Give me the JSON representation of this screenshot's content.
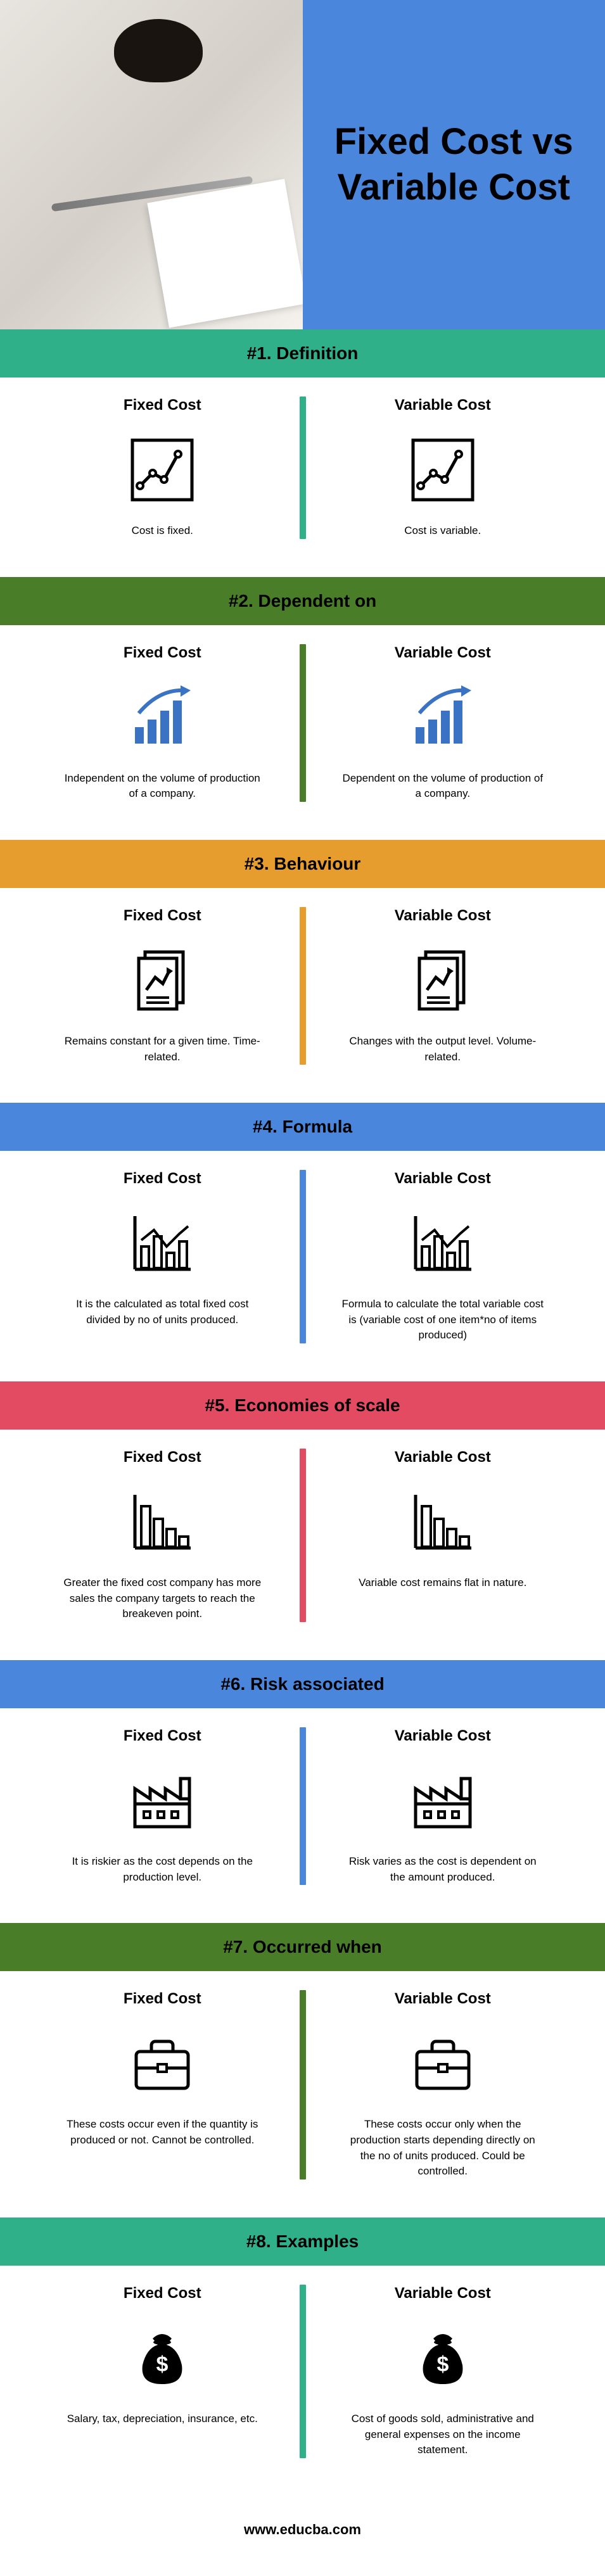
{
  "header": {
    "title": "Fixed Cost vs Variable Cost",
    "title_bg": "#4b86dd"
  },
  "labels": {
    "fixed": "Fixed Cost",
    "variable": "Variable Cost"
  },
  "sections": [
    {
      "banner": "#1. Definition",
      "banner_bg": "#2fb089",
      "divider_bg": "#2fb089",
      "icon": "line-chart",
      "fixed_text": "Cost is fixed.",
      "variable_text": "Cost is variable."
    },
    {
      "banner": "#2. Dependent on",
      "banner_bg": "#4a7d28",
      "divider_bg": "#4a7d28",
      "icon": "bar-arrow",
      "fixed_text": "Independent on the volume of production of a company.",
      "variable_text": "Dependent on the volume of production of a company."
    },
    {
      "banner": "#3. Behaviour",
      "banner_bg": "#e79d2d",
      "divider_bg": "#e79d2d",
      "icon": "document-chart",
      "fixed_text": "Remains constant for a given time. Time-related.",
      "variable_text": "Changes with the output level. Volume-related."
    },
    {
      "banner": "#4. Formula",
      "banner_bg": "#4b86dd",
      "divider_bg": "#4b86dd",
      "icon": "mixed-chart",
      "fixed_text": "It is the calculated as total fixed cost divided by no of units produced.",
      "variable_text": "Formula to calculate the total variable cost is (variable cost of one item*no of items produced)"
    },
    {
      "banner": "#5. Economies of scale",
      "banner_bg": "#e34b63",
      "divider_bg": "#e34b63",
      "icon": "descending-bars",
      "fixed_text": "Greater the fixed cost company has more sales the company targets to reach the breakeven point.",
      "variable_text": "Variable cost remains flat in nature."
    },
    {
      "banner": "#6. Risk associated",
      "banner_bg": "#4b86dd",
      "divider_bg": "#4b86dd",
      "icon": "factory",
      "fixed_text": "It is riskier as the cost depends on the production level.",
      "variable_text": "Risk varies as the cost is dependent on the amount produced."
    },
    {
      "banner": "#7. Occurred when",
      "banner_bg": "#4a7d28",
      "divider_bg": "#4a7d28",
      "icon": "briefcase",
      "fixed_text": "These costs occur even if the quantity is produced or not. Cannot be controlled.",
      "variable_text": "These costs occur only when the production starts depending directly on the no of units produced. Could be controlled."
    },
    {
      "banner": "#8. Examples",
      "banner_bg": "#2fb089",
      "divider_bg": "#2fb089",
      "icon": "money-bag",
      "fixed_text": "Salary, tax, depreciation, insurance, etc.",
      "variable_text": "Cost of goods sold, administrative and general expenses on the income statement."
    }
  ],
  "footer": "www.educba.com",
  "icon_colors": {
    "line-chart": "#000000",
    "bar-arrow": "#3a73c4",
    "document-chart": "#000000",
    "mixed-chart": "#000000",
    "descending-bars": "#000000",
    "factory": "#000000",
    "briefcase": "#000000",
    "money-bag": "#000000"
  }
}
